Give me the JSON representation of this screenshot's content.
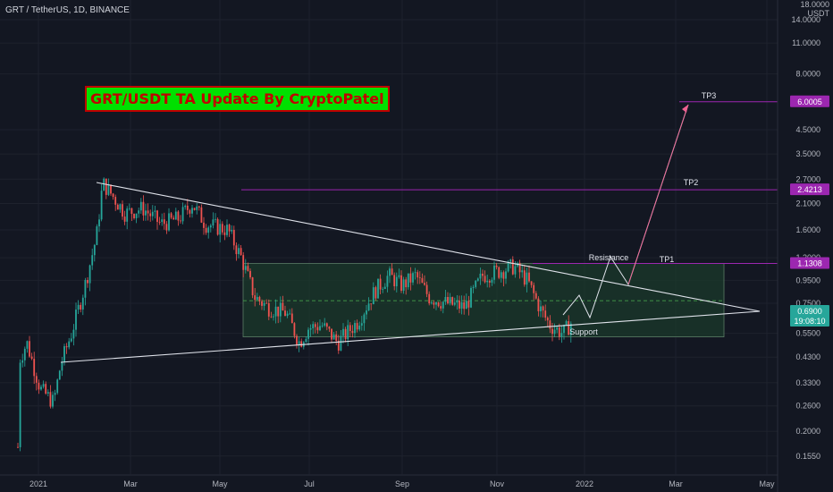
{
  "header": {
    "symbol": "GRT / TetherUS, 1D, BINANCE"
  },
  "banner": {
    "text": "GRT/USDT TA Update By CryptoPatel"
  },
  "unit": {
    "top": "18.0000",
    "currency": "USDT"
  },
  "colors": {
    "bg": "#131722",
    "up": "#26a69a",
    "down": "#ef5350",
    "purple": "#9c27b0",
    "zone": "#1b3a2b",
    "white": "#e0e3eb"
  },
  "chart_data": {
    "type": "candlestick",
    "yscale": "log",
    "yticks": [
      "14.0000",
      "11.0000",
      "8.0000",
      "4.5000",
      "3.5000",
      "2.7000",
      "2.1000",
      "1.6000",
      "1.2000",
      "0.9500",
      "0.7500",
      "0.5500",
      "0.4300",
      "0.3300",
      "0.2600",
      "0.2000",
      "0.1550"
    ],
    "xticks": [
      "2021",
      "Mar",
      "May",
      "Jul",
      "Sep",
      "Nov",
      "2022",
      "Mar",
      "May"
    ],
    "price_tags": [
      {
        "label": "6.0005",
        "value": 6.0005,
        "color": "#9c27b0"
      },
      {
        "label": "2.4213",
        "value": 2.4213,
        "color": "#9c27b0"
      },
      {
        "label": "1.1308",
        "value": 1.1308,
        "color": "#9c27b0"
      },
      {
        "label": "0.6900",
        "value": 0.69,
        "color": "#26a69a",
        "sub": "19:08:10"
      }
    ],
    "levels": [
      {
        "name": "TP3",
        "value": 6.0005
      },
      {
        "name": "TP2",
        "value": 2.4213
      },
      {
        "name": "TP1",
        "value": 1.1308
      }
    ],
    "annotations": [
      "Resistance",
      "Support"
    ],
    "range_zone": {
      "top": 1.13,
      "bottom": 0.53,
      "mid": 0.77
    },
    "triangle": {
      "upper": [
        [
          "2021-02-20",
          2.9
        ],
        [
          "2022-05-25",
          0.69
        ]
      ],
      "lower": [
        [
          "2021-01-25",
          0.4
        ],
        [
          "2022-05-25",
          0.69
        ]
      ]
    }
  }
}
